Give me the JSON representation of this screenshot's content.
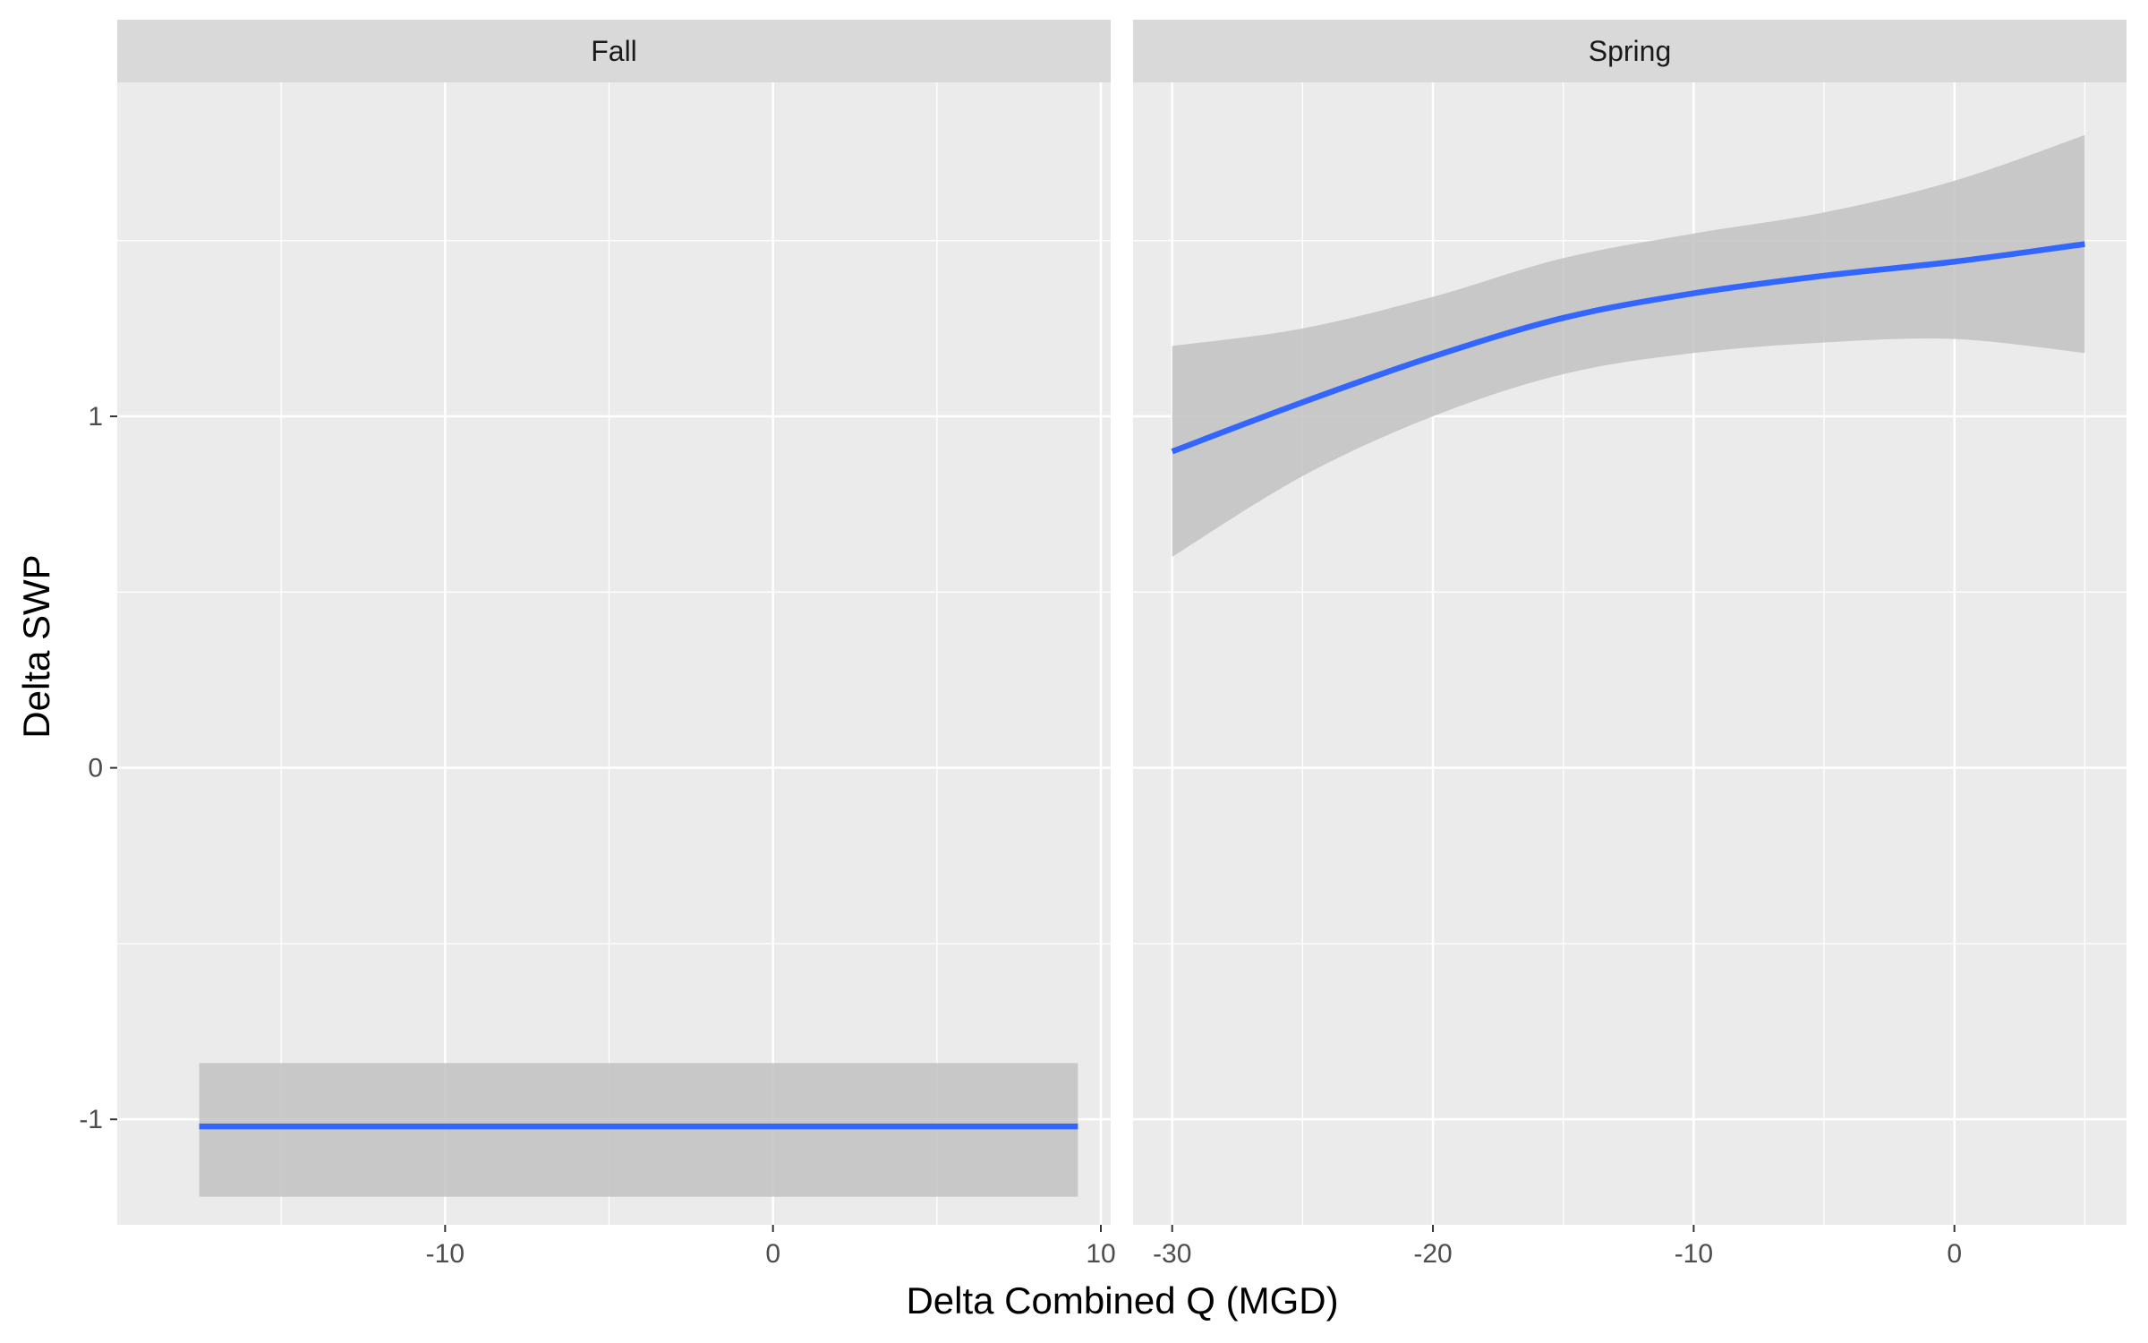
{
  "chart_data": {
    "type": "line",
    "xlabel": "Delta Combined Q (MGD)",
    "ylabel": "Delta SWP",
    "ylim": [
      -1.3,
      1.95
    ],
    "yticks": [
      -1,
      0,
      1
    ],
    "grid": true,
    "colors": {
      "panel_bg": "#ebebeb",
      "strip_bg": "#d9d9d9",
      "grid": "#ffffff",
      "line": "#3366ff",
      "ribbon": "#c2c2c2"
    },
    "panels": [
      {
        "label": "Fall",
        "xlim": [
          -20,
          10.3
        ],
        "xticks": [
          -10,
          0,
          10
        ],
        "x": [
          -17.5,
          -10,
          0,
          9.3
        ],
        "y": [
          -1.02,
          -1.02,
          -1.02,
          -1.02
        ],
        "ymin": [
          -1.22,
          -1.22,
          -1.22,
          -1.22
        ],
        "ymax": [
          -0.84,
          -0.84,
          -0.84,
          -0.84
        ]
      },
      {
        "label": "Spring",
        "xlim": [
          -31.5,
          6.6
        ],
        "xticks": [
          -30,
          -20,
          -10,
          0
        ],
        "x": [
          -30,
          -25,
          -20,
          -15,
          -10,
          -5,
          0,
          5
        ],
        "y": [
          0.9,
          1.04,
          1.17,
          1.28,
          1.35,
          1.4,
          1.44,
          1.49
        ],
        "ymin": [
          0.6,
          0.83,
          1.0,
          1.12,
          1.18,
          1.21,
          1.22,
          1.18
        ],
        "ymax": [
          1.2,
          1.25,
          1.34,
          1.45,
          1.52,
          1.58,
          1.67,
          1.8
        ]
      }
    ]
  }
}
